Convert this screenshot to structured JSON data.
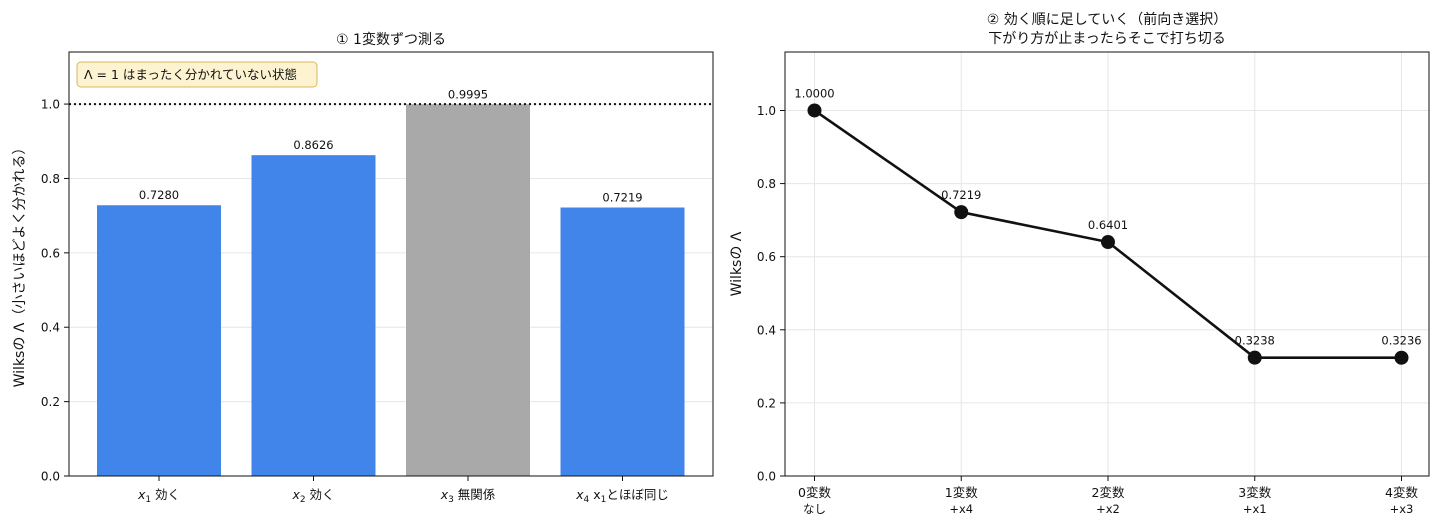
{
  "chart_data": [
    {
      "type": "bar",
      "title": "① 1変数ずつ測る",
      "ylabel": "Wilksの Λ（小さいほどよく分かれる）",
      "ylim": [
        0,
        1.14
      ],
      "yticks": [
        "0.0",
        "0.2",
        "0.4",
        "0.6",
        "0.8",
        "1.0"
      ],
      "grid": true,
      "categories": [
        {
          "var": "x",
          "sub": "1",
          "suffix": " 効く"
        },
        {
          "var": "x",
          "sub": "2",
          "suffix": " 効く"
        },
        {
          "var": "x",
          "sub": "3",
          "suffix": " 無関係"
        },
        {
          "var": "x",
          "sub": "4",
          "suffix": " x",
          "sub2": "1",
          "suffix2": "とほぼ同じ"
        }
      ],
      "values": [
        0.728,
        0.8626,
        0.9995,
        0.7219
      ],
      "value_labels": [
        "0.7280",
        "0.8626",
        "0.9995",
        "0.7219"
      ],
      "bar_colors": [
        "#4285ea",
        "#4285ea",
        "#a9a9a9",
        "#4285ea"
      ],
      "reference_line": 1.0,
      "annotation": "Λ = 1 はまったく分かれていない状態"
    },
    {
      "type": "line",
      "title_lines": [
        "② 効く順に足していく（前向き選択）",
        "下がり方が止まったらそこで打ち切る"
      ],
      "ylabel": "Wilksの Λ",
      "ylim": [
        0,
        1.16
      ],
      "yticks": [
        "0.0",
        "0.2",
        "0.4",
        "0.6",
        "0.8",
        "1.0"
      ],
      "grid": true,
      "categories": [
        [
          "0変数",
          "なし"
        ],
        [
          "1変数",
          "+x4"
        ],
        [
          "2変数",
          "+x2"
        ],
        [
          "3変数",
          "+x1"
        ],
        [
          "4変数",
          "+x3"
        ]
      ],
      "values": [
        1.0,
        0.7219,
        0.6401,
        0.3238,
        0.3236
      ],
      "value_labels": [
        "1.0000",
        "0.7219",
        "0.6401",
        "0.3238",
        "0.3236"
      ],
      "line_color": "#111111"
    }
  ]
}
